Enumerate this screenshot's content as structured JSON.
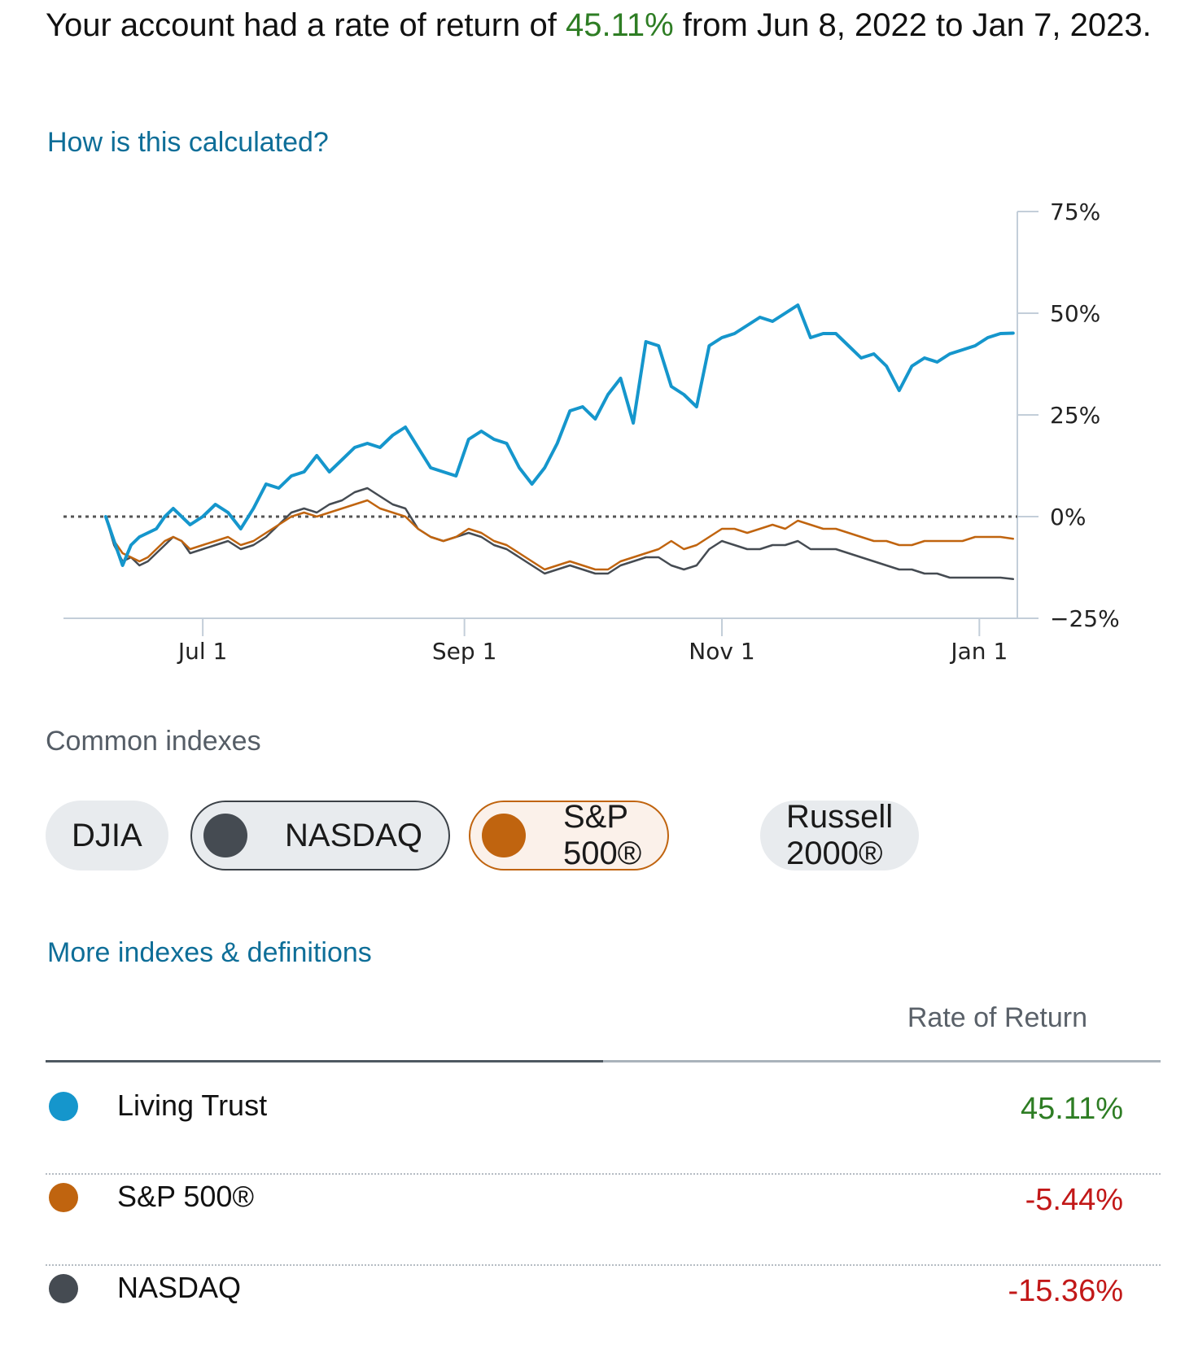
{
  "summary": {
    "prefix": "Your account had a rate of return of ",
    "rate": "45.11%",
    "suffix": " from Jun 8, 2022 to Jan 7, 2023."
  },
  "links": {
    "calc": "How is this calculated?",
    "more": "More indexes & definitions"
  },
  "colors": {
    "account": "#1596cc",
    "sp500": "#c0640f",
    "nasdaq": "#454b52",
    "positive": "#2e7d24",
    "negative": "#c21818"
  },
  "chart_data": {
    "type": "line",
    "x_unit": "days since Jun 8, 2022",
    "xlim": [
      -10,
      216
    ],
    "ylim": [
      -25,
      75
    ],
    "y_ticks": [
      75,
      50,
      25,
      0,
      -25
    ],
    "y_tick_labels": [
      "75%",
      "50%",
      "25%",
      "0%",
      "−25%"
    ],
    "x_ticks": [
      23,
      85,
      146,
      207
    ],
    "x_tick_labels": [
      "Jul 1",
      "Sep 1",
      "Nov 1",
      "Jan 1"
    ],
    "baseline": 0,
    "series": [
      {
        "name": "Living Trust",
        "color": "#1596cc",
        "x": [
          0,
          2,
          4,
          6,
          8,
          10,
          12,
          14,
          16,
          18,
          20,
          23,
          26,
          29,
          32,
          35,
          38,
          41,
          44,
          47,
          50,
          53,
          56,
          59,
          62,
          65,
          68,
          71,
          74,
          77,
          80,
          83,
          86,
          89,
          92,
          95,
          98,
          101,
          104,
          107,
          110,
          113,
          116,
          119,
          122,
          125,
          128,
          131,
          134,
          137,
          140,
          143,
          146,
          149,
          152,
          155,
          158,
          161,
          164,
          167,
          170,
          173,
          176,
          179,
          182,
          185,
          188,
          191,
          194,
          197,
          200,
          203,
          206,
          209,
          212,
          215
        ],
        "values": [
          0,
          -6,
          -12,
          -7,
          -5,
          -4,
          -3,
          0,
          2,
          0,
          -2,
          0,
          3,
          1,
          -3,
          2,
          8,
          7,
          10,
          11,
          15,
          11,
          14,
          17,
          18,
          17,
          20,
          22,
          17,
          12,
          11,
          10,
          19,
          21,
          19,
          18,
          12,
          8,
          12,
          18,
          26,
          27,
          24,
          30,
          34,
          23,
          43,
          42,
          32,
          30,
          27,
          42,
          44,
          45,
          47,
          49,
          48,
          50,
          52,
          44,
          45,
          45,
          42,
          39,
          40,
          37,
          31,
          37,
          39,
          38,
          40,
          41,
          42,
          44,
          45,
          45.11
        ]
      },
      {
        "name": "S&P 500®",
        "color": "#c0640f",
        "x": [
          0,
          2,
          4,
          6,
          8,
          10,
          12,
          14,
          16,
          18,
          20,
          23,
          26,
          29,
          32,
          35,
          38,
          41,
          44,
          47,
          50,
          53,
          56,
          59,
          62,
          65,
          68,
          71,
          74,
          77,
          80,
          83,
          86,
          89,
          92,
          95,
          98,
          101,
          104,
          107,
          110,
          113,
          116,
          119,
          122,
          125,
          128,
          131,
          134,
          137,
          140,
          143,
          146,
          149,
          152,
          155,
          158,
          161,
          164,
          167,
          170,
          173,
          176,
          179,
          182,
          185,
          188,
          191,
          194,
          197,
          200,
          203,
          206,
          209,
          212,
          215
        ],
        "values": [
          0,
          -6,
          -9,
          -10,
          -11,
          -10,
          -8,
          -6,
          -5,
          -6,
          -8,
          -7,
          -6,
          -5,
          -7,
          -6,
          -4,
          -2,
          0,
          1,
          0,
          1,
          2,
          3,
          4,
          2,
          1,
          0,
          -3,
          -5,
          -6,
          -5,
          -3,
          -4,
          -6,
          -7,
          -9,
          -11,
          -13,
          -12,
          -11,
          -12,
          -13,
          -13,
          -11,
          -10,
          -9,
          -8,
          -6,
          -8,
          -7,
          -5,
          -3,
          -3,
          -4,
          -3,
          -2,
          -3,
          -1,
          -2,
          -3,
          -3,
          -4,
          -5,
          -6,
          -6,
          -7,
          -7,
          -6,
          -6,
          -6,
          -6,
          -5,
          -5,
          -5,
          -5.44
        ]
      },
      {
        "name": "NASDAQ",
        "color": "#454b52",
        "x": [
          0,
          2,
          4,
          6,
          8,
          10,
          12,
          14,
          16,
          18,
          20,
          23,
          26,
          29,
          32,
          35,
          38,
          41,
          44,
          47,
          50,
          53,
          56,
          59,
          62,
          65,
          68,
          71,
          74,
          77,
          80,
          83,
          86,
          89,
          92,
          95,
          98,
          101,
          104,
          107,
          110,
          113,
          116,
          119,
          122,
          125,
          128,
          131,
          134,
          137,
          140,
          143,
          146,
          149,
          152,
          155,
          158,
          161,
          164,
          167,
          170,
          173,
          176,
          179,
          182,
          185,
          188,
          191,
          194,
          197,
          200,
          203,
          206,
          209,
          212,
          215
        ],
        "values": [
          0,
          -7,
          -11,
          -10,
          -12,
          -11,
          -9,
          -7,
          -5,
          -6,
          -9,
          -8,
          -7,
          -6,
          -8,
          -7,
          -5,
          -2,
          1,
          2,
          1,
          3,
          4,
          6,
          7,
          5,
          3,
          2,
          -3,
          -5,
          -6,
          -5,
          -4,
          -5,
          -7,
          -8,
          -10,
          -12,
          -14,
          -13,
          -12,
          -13,
          -14,
          -14,
          -12,
          -11,
          -10,
          -10,
          -12,
          -13,
          -12,
          -8,
          -6,
          -7,
          -8,
          -8,
          -7,
          -7,
          -6,
          -8,
          -8,
          -8,
          -9,
          -10,
          -11,
          -12,
          -13,
          -13,
          -14,
          -14,
          -15,
          -15,
          -15,
          -15,
          -15,
          -15.36
        ]
      }
    ]
  },
  "indexes": {
    "title": "Common indexes",
    "chips": [
      "DJIA",
      "NASDAQ",
      "S&P 500®",
      "Russell 2000®"
    ]
  },
  "table": {
    "header": "Rate of Return",
    "rows": [
      {
        "name": "Living Trust",
        "value": "45.11%"
      },
      {
        "name": "S&P 500®",
        "value": "-5.44%"
      },
      {
        "name": "NASDAQ",
        "value": "-15.36%"
      }
    ]
  }
}
